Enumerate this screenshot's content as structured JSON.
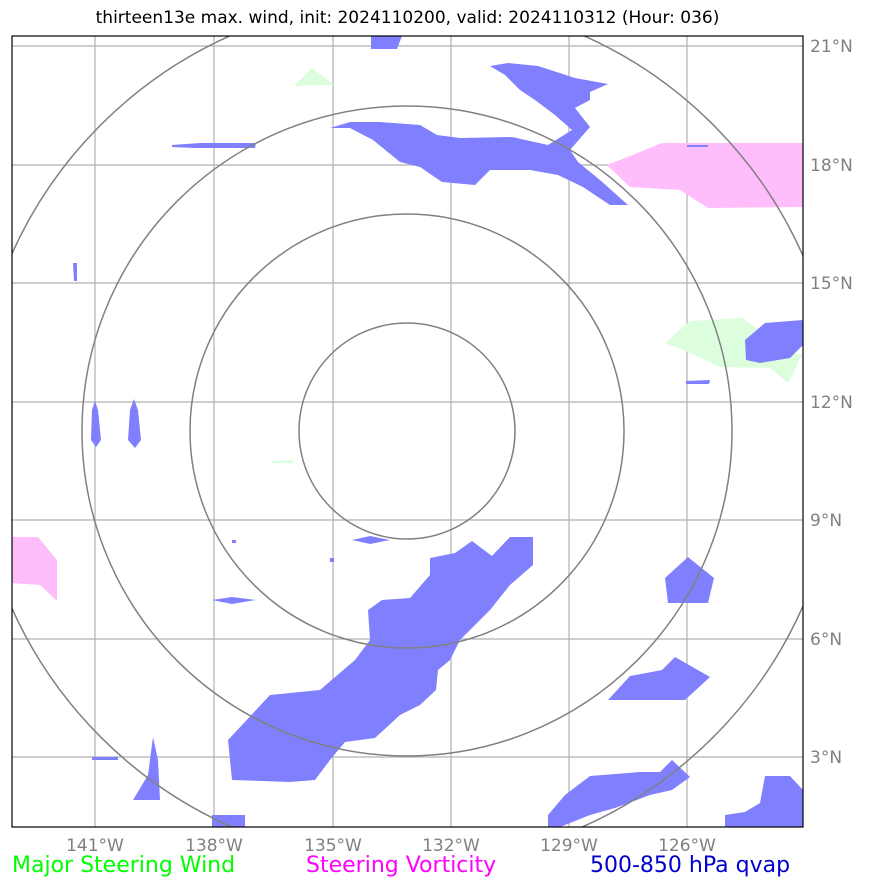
{
  "title": "thirteen13e max. wind, init: 2024110200, valid: 2024110312 (Hour: 036)",
  "map": {
    "lon_labels": [
      "141°W",
      "138°W",
      "135°W",
      "132°W",
      "129°W",
      "126°W"
    ],
    "lat_labels": [
      "21°N",
      "18°N",
      "15°N",
      "12°N",
      "9°N",
      "6°N",
      "3°N"
    ],
    "range_rings": 4,
    "colors": {
      "steering_wind": "#00ff00",
      "steering_vorticity": "#ff00ff",
      "qvap": "#0000cc",
      "qvap_fill": "#8080ff",
      "wind_fill": "#ddfedd",
      "vort_fill": "#ffbdfb",
      "grid": "#b0b0b0",
      "ring": "#808080"
    }
  },
  "legend": {
    "steering_wind": "Major Steering Wind",
    "steering_vorticity": "Steering Vorticity",
    "qvap": "500-850 hPa qvap"
  }
}
